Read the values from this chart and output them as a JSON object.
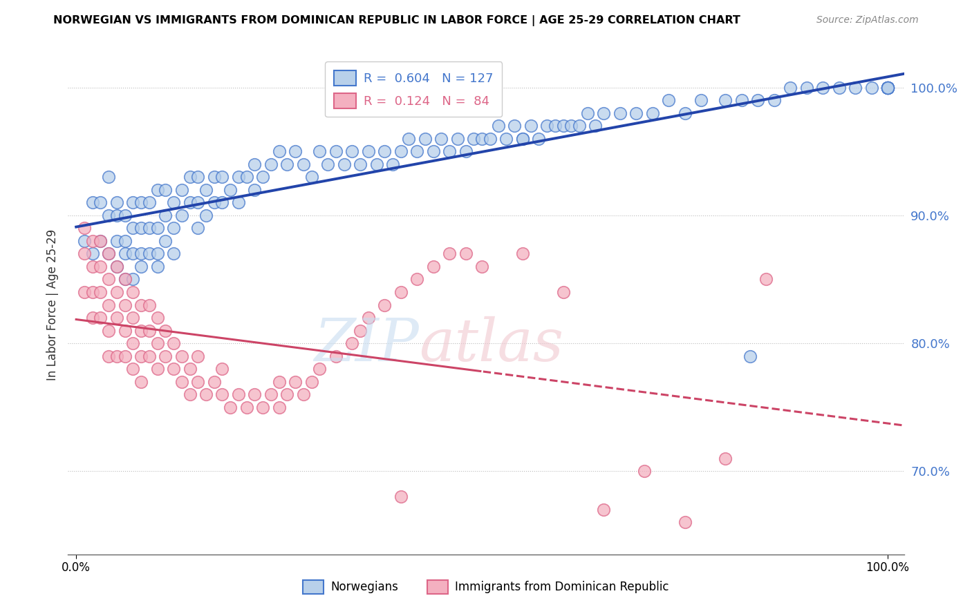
{
  "title": "NORWEGIAN VS IMMIGRANTS FROM DOMINICAN REPUBLIC IN LABOR FORCE | AGE 25-29 CORRELATION CHART",
  "source_text": "Source: ZipAtlas.com",
  "ylabel": "In Labor Force | Age 25-29",
  "xlim": [
    -0.01,
    1.02
  ],
  "ylim": [
    0.635,
    1.025
  ],
  "blue_R": 0.604,
  "blue_N": 127,
  "pink_R": 0.124,
  "pink_N": 84,
  "right_yticks": [
    0.7,
    0.8,
    0.9,
    1.0
  ],
  "blue_color": "#b8d0ea",
  "pink_color": "#f4b0c0",
  "blue_edge_color": "#4477cc",
  "pink_edge_color": "#dd6688",
  "blue_line_color": "#2244aa",
  "pink_line_color": "#cc4466",
  "legend_labels": [
    "Norwegians",
    "Immigrants from Dominican Republic"
  ],
  "watermark_zip_color": "#c8ddf0",
  "watermark_atlas_color": "#f0c8d0",
  "blue_scatter_x": [
    0.01,
    0.02,
    0.02,
    0.03,
    0.03,
    0.04,
    0.04,
    0.04,
    0.05,
    0.05,
    0.05,
    0.05,
    0.06,
    0.06,
    0.06,
    0.06,
    0.07,
    0.07,
    0.07,
    0.07,
    0.08,
    0.08,
    0.08,
    0.08,
    0.09,
    0.09,
    0.09,
    0.1,
    0.1,
    0.1,
    0.1,
    0.11,
    0.11,
    0.11,
    0.12,
    0.12,
    0.12,
    0.13,
    0.13,
    0.14,
    0.14,
    0.15,
    0.15,
    0.15,
    0.16,
    0.16,
    0.17,
    0.17,
    0.18,
    0.18,
    0.19,
    0.2,
    0.2,
    0.21,
    0.22,
    0.22,
    0.23,
    0.24,
    0.25,
    0.26,
    0.27,
    0.28,
    0.29,
    0.3,
    0.31,
    0.32,
    0.33,
    0.34,
    0.35,
    0.36,
    0.37,
    0.38,
    0.39,
    0.4,
    0.41,
    0.42,
    0.43,
    0.44,
    0.45,
    0.46,
    0.47,
    0.48,
    0.49,
    0.5,
    0.51,
    0.52,
    0.53,
    0.54,
    0.55,
    0.56,
    0.57,
    0.58,
    0.59,
    0.6,
    0.61,
    0.62,
    0.63,
    0.64,
    0.65,
    0.67,
    0.69,
    0.71,
    0.73,
    0.75,
    0.77,
    0.8,
    0.82,
    0.84,
    0.86,
    0.88,
    0.9,
    0.92,
    0.94,
    0.96,
    0.98,
    1.0,
    1.0,
    1.0,
    1.0,
    1.0,
    1.0,
    1.0,
    1.0,
    1.0,
    1.0,
    0.83,
    0.55
  ],
  "blue_scatter_y": [
    0.88,
    0.91,
    0.87,
    0.91,
    0.88,
    0.93,
    0.9,
    0.87,
    0.91,
    0.88,
    0.9,
    0.86,
    0.9,
    0.88,
    0.87,
    0.85,
    0.91,
    0.89,
    0.87,
    0.85,
    0.91,
    0.89,
    0.87,
    0.86,
    0.91,
    0.89,
    0.87,
    0.92,
    0.89,
    0.87,
    0.86,
    0.92,
    0.9,
    0.88,
    0.91,
    0.89,
    0.87,
    0.92,
    0.9,
    0.93,
    0.91,
    0.93,
    0.91,
    0.89,
    0.92,
    0.9,
    0.93,
    0.91,
    0.93,
    0.91,
    0.92,
    0.93,
    0.91,
    0.93,
    0.94,
    0.92,
    0.93,
    0.94,
    0.95,
    0.94,
    0.95,
    0.94,
    0.93,
    0.95,
    0.94,
    0.95,
    0.94,
    0.95,
    0.94,
    0.95,
    0.94,
    0.95,
    0.94,
    0.95,
    0.96,
    0.95,
    0.96,
    0.95,
    0.96,
    0.95,
    0.96,
    0.95,
    0.96,
    0.96,
    0.96,
    0.97,
    0.96,
    0.97,
    0.96,
    0.97,
    0.96,
    0.97,
    0.97,
    0.97,
    0.97,
    0.97,
    0.98,
    0.97,
    0.98,
    0.98,
    0.98,
    0.98,
    0.99,
    0.98,
    0.99,
    0.99,
    0.99,
    0.99,
    0.99,
    1.0,
    1.0,
    1.0,
    1.0,
    1.0,
    1.0,
    1.0,
    1.0,
    1.0,
    1.0,
    1.0,
    1.0,
    1.0,
    1.0,
    1.0,
    1.0,
    0.79,
    0.96
  ],
  "pink_scatter_x": [
    0.01,
    0.01,
    0.01,
    0.02,
    0.02,
    0.02,
    0.02,
    0.03,
    0.03,
    0.03,
    0.03,
    0.04,
    0.04,
    0.04,
    0.04,
    0.04,
    0.05,
    0.05,
    0.05,
    0.05,
    0.06,
    0.06,
    0.06,
    0.06,
    0.07,
    0.07,
    0.07,
    0.07,
    0.08,
    0.08,
    0.08,
    0.08,
    0.09,
    0.09,
    0.09,
    0.1,
    0.1,
    0.1,
    0.11,
    0.11,
    0.12,
    0.12,
    0.13,
    0.13,
    0.14,
    0.14,
    0.15,
    0.15,
    0.16,
    0.17,
    0.18,
    0.18,
    0.19,
    0.2,
    0.21,
    0.22,
    0.23,
    0.24,
    0.25,
    0.25,
    0.26,
    0.27,
    0.28,
    0.29,
    0.3,
    0.32,
    0.34,
    0.35,
    0.36,
    0.38,
    0.4,
    0.42,
    0.44,
    0.46,
    0.48,
    0.5,
    0.55,
    0.6,
    0.65,
    0.7,
    0.75,
    0.8,
    0.85,
    0.4
  ],
  "pink_scatter_y": [
    0.89,
    0.87,
    0.84,
    0.88,
    0.86,
    0.84,
    0.82,
    0.88,
    0.86,
    0.84,
    0.82,
    0.87,
    0.85,
    0.83,
    0.81,
    0.79,
    0.86,
    0.84,
    0.82,
    0.79,
    0.85,
    0.83,
    0.81,
    0.79,
    0.84,
    0.82,
    0.8,
    0.78,
    0.83,
    0.81,
    0.79,
    0.77,
    0.83,
    0.81,
    0.79,
    0.82,
    0.8,
    0.78,
    0.81,
    0.79,
    0.8,
    0.78,
    0.79,
    0.77,
    0.78,
    0.76,
    0.79,
    0.77,
    0.76,
    0.77,
    0.78,
    0.76,
    0.75,
    0.76,
    0.75,
    0.76,
    0.75,
    0.76,
    0.77,
    0.75,
    0.76,
    0.77,
    0.76,
    0.77,
    0.78,
    0.79,
    0.8,
    0.81,
    0.82,
    0.83,
    0.84,
    0.85,
    0.86,
    0.87,
    0.87,
    0.86,
    0.87,
    0.84,
    0.67,
    0.7,
    0.66,
    0.71,
    0.85,
    0.68
  ]
}
